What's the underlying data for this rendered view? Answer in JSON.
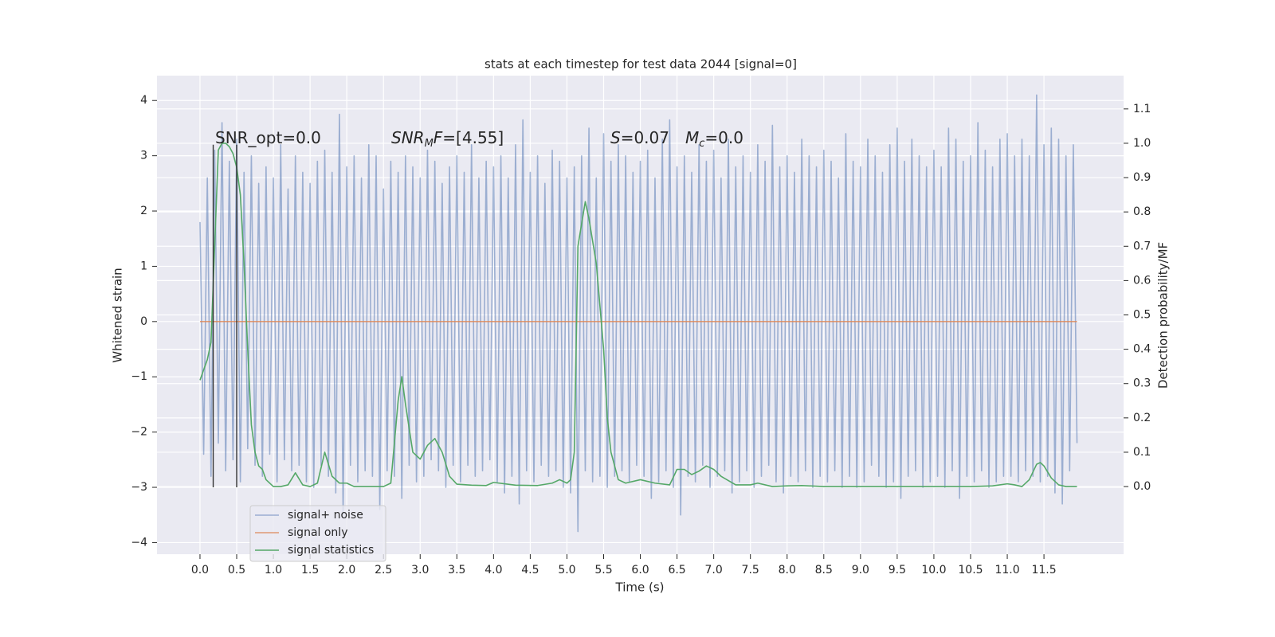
{
  "chart_data": {
    "type": "line",
    "title": "stats at each timestep for test data 2044 [signal=0]",
    "x_label": "Time (s)",
    "y_label": "Whitened strain",
    "y2_label": "Detection probability/MF",
    "xlim": [
      -0.586,
      12.585
    ],
    "ylim": [
      -4.21,
      4.45
    ],
    "y2lim": [
      -0.197,
      1.197
    ],
    "grid": true,
    "legend": "lower left",
    "xticks": [
      {
        "value": 0,
        "label": "0.0"
      },
      0.5,
      {
        "value": 1,
        "label": "1.0"
      },
      1.5,
      {
        "value": 2,
        "label": "2.0"
      },
      2.5,
      {
        "value": 3,
        "label": "3.0"
      },
      3.5,
      {
        "value": 4,
        "label": "4.0"
      },
      4.5,
      {
        "value": 5,
        "label": "5.0"
      },
      5.5,
      {
        "value": 6,
        "label": "6.0"
      },
      6.5,
      {
        "value": 7,
        "label": "7.0"
      },
      7.5,
      {
        "value": 8,
        "label": "8.0"
      },
      8.5,
      {
        "value": 9,
        "label": "9.0"
      },
      9.5,
      {
        "value": 10,
        "label": "10.0"
      },
      10.5,
      {
        "value": 11,
        "label": "11.0"
      },
      11.5
    ],
    "yticks": [
      {
        "value": -4,
        "label": "−4"
      },
      {
        "value": -3,
        "label": "−3"
      },
      {
        "value": -2,
        "label": "−2"
      },
      {
        "value": -1,
        "label": "−1"
      },
      0,
      1,
      2,
      3,
      4
    ],
    "y2ticks": [
      {
        "value": 0,
        "label": "0.0"
      },
      0.1,
      0.2,
      0.3,
      0.4,
      0.5,
      0.6,
      0.7,
      0.8,
      0.9,
      {
        "value": 1,
        "label": "1.0"
      },
      1.1
    ],
    "annotations": [
      [
        "SNR_opt=0.0"
      ],
      [
        "SNR",
        "M",
        "F",
        "=[4.55]"
      ],
      [
        "S",
        "=0.07",
        "M",
        "c",
        "=0.0"
      ]
    ],
    "vlines": {
      "x": [
        0.18,
        0.5
      ],
      "ymin": -3,
      "ymax": 3.2,
      "color": "#333333"
    },
    "series": [
      {
        "name": "signal+ noise",
        "color": "#4c72b0",
        "opacity": 0.5,
        "x": [
          0,
          0.05,
          0.1,
          0.15,
          0.2,
          0.25,
          0.3,
          0.35,
          0.4,
          0.45,
          0.5,
          0.55,
          0.6,
          0.65,
          0.7,
          0.75,
          0.8,
          0.85,
          0.9,
          0.95,
          1,
          1.05,
          1.1,
          1.15,
          1.2,
          1.25,
          1.3,
          1.35,
          1.4,
          1.45,
          1.5,
          1.55,
          1.6,
          1.65,
          1.7,
          1.75,
          1.8,
          1.85,
          1.9,
          1.95,
          2,
          2.05,
          2.1,
          2.15,
          2.2,
          2.25,
          2.3,
          2.35,
          2.4,
          2.45,
          2.5,
          2.55,
          2.6,
          2.65,
          2.7,
          2.75,
          2.8,
          2.85,
          2.9,
          2.95,
          3,
          3.05,
          3.1,
          3.15,
          3.2,
          3.25,
          3.3,
          3.35,
          3.4,
          3.45,
          3.5,
          3.55,
          3.6,
          3.65,
          3.7,
          3.75,
          3.8,
          3.85,
          3.9,
          3.95,
          4,
          4.05,
          4.1,
          4.15,
          4.2,
          4.25,
          4.3,
          4.35,
          4.4,
          4.45,
          4.5,
          4.55,
          4.6,
          4.65,
          4.7,
          4.75,
          4.8,
          4.85,
          4.9,
          4.95,
          5,
          5.05,
          5.1,
          5.15,
          5.2,
          5.25,
          5.3,
          5.35,
          5.4,
          5.45,
          5.5,
          5.55,
          5.6,
          5.65,
          5.7,
          5.75,
          5.8,
          5.85,
          5.9,
          5.95,
          6,
          6.05,
          6.1,
          6.15,
          6.2,
          6.25,
          6.3,
          6.35,
          6.4,
          6.45,
          6.5,
          6.55,
          6.6,
          6.65,
          6.7,
          6.75,
          6.8,
          6.85,
          6.9,
          6.95,
          7,
          7.05,
          7.1,
          7.15,
          7.2,
          7.25,
          7.3,
          7.35,
          7.4,
          7.45,
          7.5,
          7.55,
          7.6,
          7.65,
          7.7,
          7.75,
          7.8,
          7.85,
          7.9,
          7.95,
          8,
          8.05,
          8.1,
          8.15,
          8.2,
          8.25,
          8.3,
          8.35,
          8.4,
          8.45,
          8.5,
          8.55,
          8.6,
          8.65,
          8.7,
          8.75,
          8.8,
          8.85,
          8.9,
          8.95,
          9,
          9.05,
          9.1,
          9.15,
          9.2,
          9.25,
          9.3,
          9.35,
          9.4,
          9.45,
          9.5,
          9.55,
          9.6,
          9.65,
          9.7,
          9.75,
          9.8,
          9.85,
          9.9,
          9.95,
          10,
          10.05,
          10.1,
          10.15,
          10.2,
          10.25,
          10.3,
          10.35,
          10.4,
          10.45,
          10.5,
          10.55,
          10.6,
          10.65,
          10.7,
          10.75,
          10.8,
          10.85,
          10.9,
          10.95,
          11,
          11.05,
          11.1,
          11.15,
          11.2,
          11.25,
          11.3,
          11.35,
          11.4,
          11.45,
          11.5,
          11.55,
          11.6,
          11.65,
          11.7,
          11.75,
          11.8,
          11.85,
          11.9,
          11.95
        ],
        "values": [
          1.8,
          -2.4,
          2.6,
          -2.8,
          3.1,
          -2.2,
          3.6,
          -2.7,
          2.9,
          -2.5,
          3.3,
          -2.9,
          2.7,
          -2.3,
          3.0,
          -2.6,
          2.5,
          -2.8,
          2.8,
          -2.4,
          2.6,
          -2.9,
          3.2,
          -2.5,
          2.4,
          -2.7,
          3.0,
          -2.6,
          2.7,
          -2.9,
          2.5,
          -3.0,
          2.9,
          -2.6,
          3.1,
          -2.8,
          2.7,
          -3.1,
          3.75,
          -3.5,
          2.8,
          -2.6,
          3.0,
          -2.9,
          2.6,
          -2.7,
          3.2,
          -2.8,
          3.0,
          -3.4,
          2.4,
          -2.7,
          2.9,
          -2.8,
          2.7,
          -3.2,
          3.0,
          -2.6,
          2.8,
          -2.9,
          2.6,
          -2.8,
          3.1,
          -2.5,
          2.9,
          -2.7,
          2.5,
          -3.0,
          2.8,
          -2.6,
          3.0,
          -2.9,
          2.7,
          -2.6,
          3.2,
          -2.8,
          2.6,
          -2.7,
          2.9,
          -2.5,
          2.8,
          -2.9,
          3.0,
          -3.1,
          2.6,
          -2.8,
          3.2,
          -3.3,
          3.65,
          -2.7,
          2.7,
          -2.9,
          3.0,
          -2.6,
          2.5,
          -2.8,
          3.1,
          -2.7,
          2.9,
          -3.0,
          2.6,
          -3.1,
          2.8,
          -3.8,
          3.0,
          -2.7,
          3.5,
          -2.9,
          2.6,
          -2.8,
          3.4,
          -3.0,
          2.9,
          -2.8,
          3.2,
          -2.7,
          3.0,
          -2.9,
          2.7,
          -2.6,
          2.9,
          -2.8,
          3.1,
          -3.2,
          2.6,
          -2.9,
          3.3,
          -2.7,
          3.65,
          -3.0,
          2.8,
          -3.5,
          3.0,
          -2.8,
          2.7,
          -2.9,
          3.2,
          -2.6,
          2.9,
          -3.0,
          3.1,
          -2.8,
          2.6,
          -2.7,
          3.3,
          -3.1,
          2.8,
          -2.9,
          3.0,
          -2.7,
          2.7,
          -3.0,
          3.2,
          -2.8,
          2.9,
          -2.6,
          3.55,
          -2.9,
          2.8,
          -3.1,
          3.0,
          -2.8,
          2.7,
          -2.9,
          3.3,
          -2.7,
          3.0,
          -3.0,
          2.8,
          -2.8,
          3.1,
          -2.9,
          2.9,
          -2.7,
          2.6,
          -3.0,
          3.4,
          -2.8,
          2.9,
          -3.0,
          2.8,
          -2.9,
          3.3,
          -2.6,
          3.0,
          -2.8,
          2.7,
          -3.0,
          3.2,
          -2.9,
          3.5,
          -3.2,
          2.9,
          -2.8,
          3.3,
          -2.7,
          3.0,
          -3.0,
          2.8,
          -2.9,
          3.1,
          -2.8,
          2.8,
          -3.0,
          3.5,
          -2.7,
          3.3,
          -3.2,
          2.9,
          -2.8,
          3.0,
          -2.9,
          3.6,
          -2.7,
          3.1,
          -3.0,
          2.8,
          -2.9,
          3.3,
          -2.8,
          3.4,
          -2.8,
          3.0,
          -2.9,
          3.3,
          -2.7,
          3.0,
          -2.8,
          4.1,
          -2.9,
          3.2,
          -2.8,
          3.5,
          -3.1,
          3.3,
          -3.3,
          3.0,
          -2.7,
          3.2,
          -2.2
        ]
      },
      {
        "name": "signal only",
        "color": "#dd8452",
        "opacity": 0.8,
        "x": [
          0,
          11.95
        ],
        "values": [
          0,
          0
        ]
      },
      {
        "name": "signal statistics",
        "color": "#55a868",
        "opacity": 1,
        "axis": "y2",
        "x": [
          0,
          0.1,
          0.15,
          0.2,
          0.25,
          0.3,
          0.35,
          0.4,
          0.45,
          0.5,
          0.55,
          0.6,
          0.65,
          0.7,
          0.75,
          0.8,
          0.85,
          0.9,
          1,
          1.1,
          1.2,
          1.3,
          1.4,
          1.5,
          1.6,
          1.7,
          1.8,
          1.9,
          2,
          2.1,
          2.3,
          2.5,
          2.6,
          2.7,
          2.75,
          2.8,
          2.9,
          3,
          3.1,
          3.2,
          3.3,
          3.4,
          3.5,
          3.7,
          3.9,
          4,
          4.3,
          4.6,
          4.8,
          4.9,
          5,
          5.05,
          5.1,
          5.15,
          5.25,
          5.3,
          5.4,
          5.5,
          5.55,
          5.6,
          5.7,
          5.8,
          6,
          6.2,
          6.4,
          6.5,
          6.6,
          6.7,
          6.8,
          6.9,
          7,
          7.1,
          7.3,
          7.5,
          7.6,
          7.8,
          8,
          8.2,
          8.5,
          9,
          10,
          10.5,
          10.8,
          11,
          11.1,
          11.2,
          11.3,
          11.4,
          11.45,
          11.5,
          11.6,
          11.7,
          11.8,
          11.95
        ],
        "values": [
          0.31,
          0.37,
          0.42,
          0.7,
          0.98,
          1.0,
          1.0,
          0.99,
          0.97,
          0.93,
          0.85,
          0.65,
          0.4,
          0.18,
          0.1,
          0.06,
          0.05,
          0.02,
          0.0,
          0.0,
          0.005,
          0.04,
          0.005,
          0.0,
          0.01,
          0.1,
          0.03,
          0.01,
          0.01,
          0.0,
          0.0,
          0.0,
          0.01,
          0.25,
          0.32,
          0.24,
          0.1,
          0.08,
          0.12,
          0.14,
          0.1,
          0.03,
          0.007,
          0.004,
          0.003,
          0.012,
          0.004,
          0.003,
          0.01,
          0.02,
          0.01,
          0.02,
          0.1,
          0.7,
          0.83,
          0.78,
          0.65,
          0.4,
          0.2,
          0.1,
          0.02,
          0.01,
          0.02,
          0.01,
          0.005,
          0.05,
          0.05,
          0.035,
          0.045,
          0.06,
          0.05,
          0.03,
          0.005,
          0.005,
          0.01,
          0.0,
          0.002,
          0.003,
          0.0,
          0.0,
          0.0,
          0.0,
          0.002,
          0.008,
          0.005,
          0.0,
          0.02,
          0.065,
          0.07,
          0.06,
          0.025,
          0.005,
          0.0,
          0.0
        ]
      }
    ]
  }
}
